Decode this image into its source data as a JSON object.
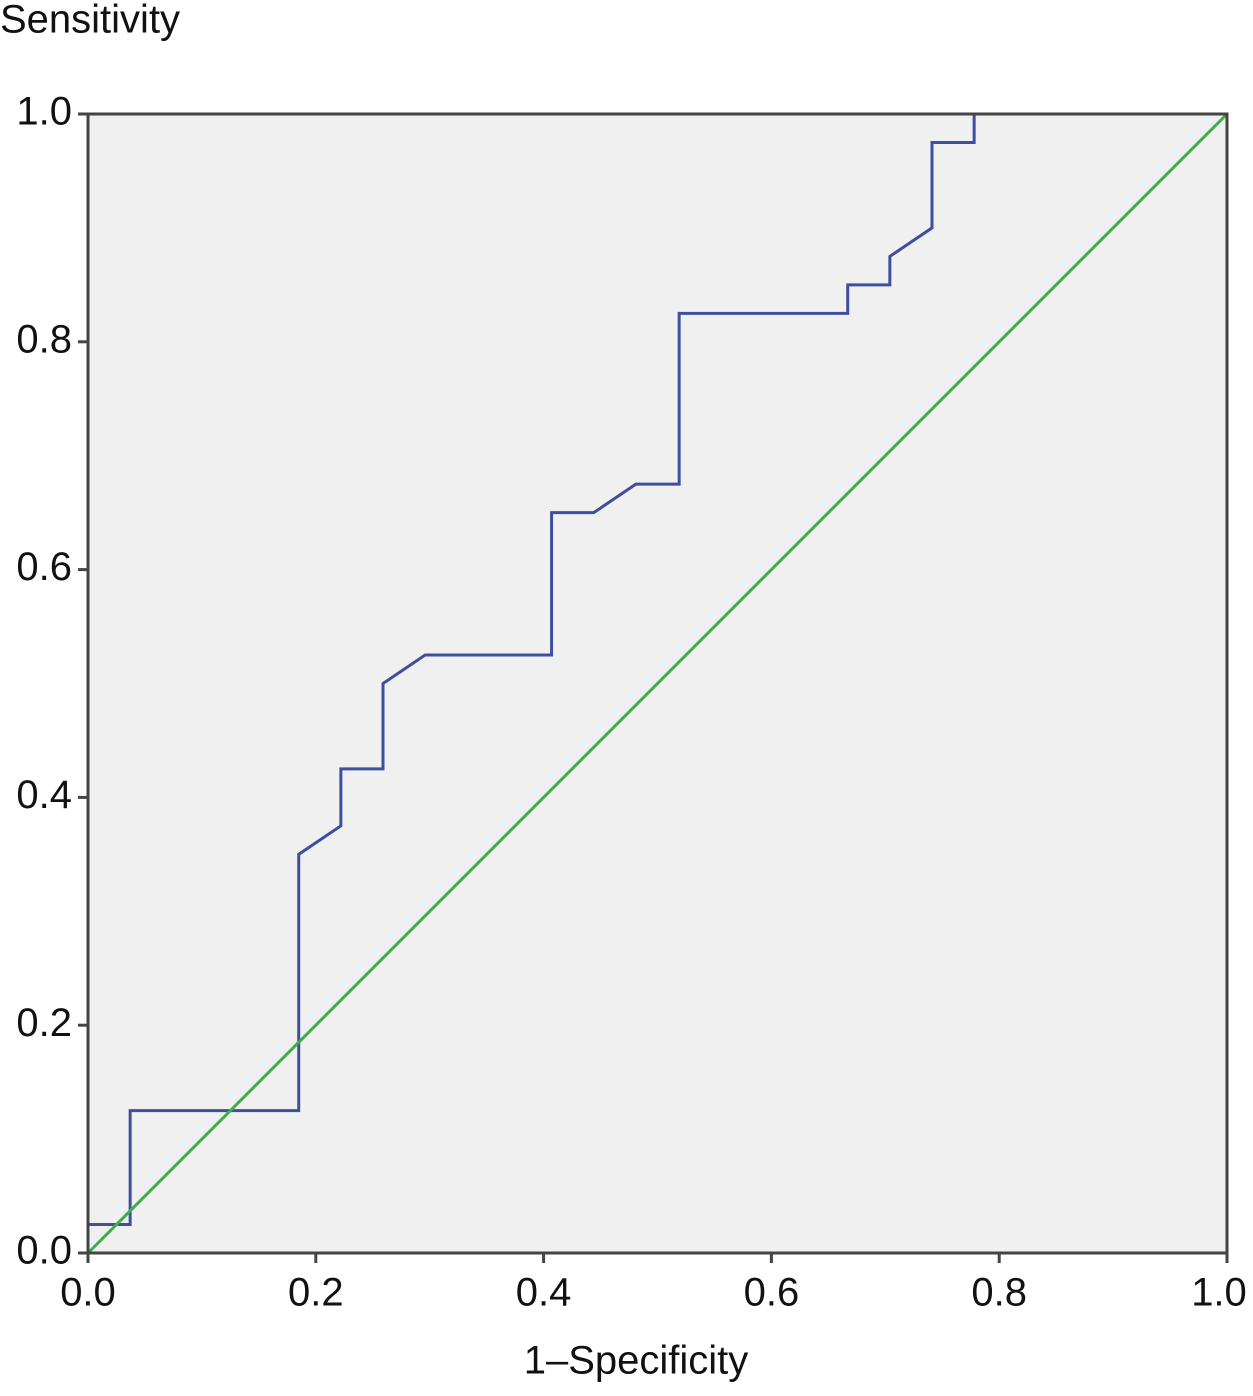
{
  "chart_data": {
    "type": "line",
    "y_label": "Sensitivity",
    "x_label": "1–Specificity",
    "xlim": [
      0,
      1
    ],
    "ylim": [
      0,
      1
    ],
    "xticks": [
      {
        "value": 0,
        "label": "0.0"
      },
      {
        "value": 0.2,
        "label": "0.2"
      },
      {
        "value": 0.4,
        "label": "0.4"
      },
      {
        "value": 0.6,
        "label": "0.6"
      },
      {
        "value": 0.8,
        "label": "0.8"
      },
      {
        "value": 1,
        "label": "1.0"
      }
    ],
    "yticks": [
      {
        "value": 0,
        "label": "0.0"
      },
      {
        "value": 0.2,
        "label": "0.2"
      },
      {
        "value": 0.4,
        "label": "0.4"
      },
      {
        "value": 0.6,
        "label": "0.6"
      },
      {
        "value": 0.8,
        "label": "0.8"
      },
      {
        "value": 1,
        "label": "1.0"
      }
    ],
    "background": "#f0f0f0",
    "series": [
      {
        "color": "#3f4fa0",
        "x": [
          0,
          0,
          0.037,
          0.037,
          0.185,
          0.185,
          0.222,
          0.222,
          0.259,
          0.259,
          0.296,
          0.407,
          0.407,
          0.444,
          0.481,
          0.519,
          0.519,
          0.667,
          0.667,
          0.704,
          0.704,
          0.741,
          0.741,
          0.778,
          0.778,
          1
        ],
        "y": [
          0,
          0.025,
          0.025,
          0.125,
          0.125,
          0.35,
          0.375,
          0.425,
          0.425,
          0.5,
          0.525,
          0.525,
          0.65,
          0.65,
          0.675,
          0.675,
          0.825,
          0.825,
          0.85,
          0.85,
          0.875,
          0.9,
          0.975,
          0.975,
          1,
          1
        ]
      },
      {
        "color": "#3fae4a",
        "x": [
          0,
          1
        ],
        "y": [
          0,
          1
        ]
      }
    ]
  }
}
